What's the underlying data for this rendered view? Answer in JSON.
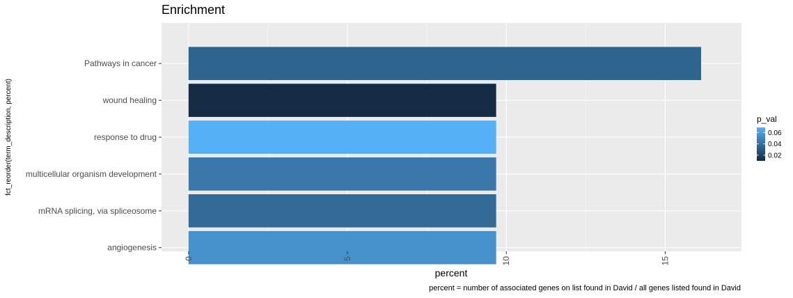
{
  "chart_data": {
    "type": "bar",
    "orientation": "horizontal",
    "title": "Enrichment",
    "xlabel": "percent",
    "ylabel": "fct_reorder(term_description, percent)",
    "caption": "percent = number of associated genes on list found in David / all genes listed found in David",
    "categories": [
      "Pathways in cancer",
      "wound healing",
      "response to drug",
      "multicellular organism development",
      "mRNA splicing, via spliceosome",
      "angiogenesis"
    ],
    "values": [
      16.13,
      9.68,
      9.68,
      9.68,
      9.68,
      9.68
    ],
    "p_val": [
      0.035,
      0.01,
      0.068,
      0.044,
      0.038,
      0.055
    ],
    "xlim": [
      -0.85,
      17.4
    ],
    "xticks": [
      "0",
      "5",
      "10",
      "15"
    ],
    "xtick_values": [
      0,
      5,
      10,
      15
    ],
    "grid": true,
    "legend": {
      "title": "p_val",
      "position": "right",
      "range": [
        0.01,
        0.069
      ],
      "ticks": [
        "0.06",
        "0.04",
        "0.02"
      ],
      "tick_values": [
        0.06,
        0.04,
        0.02
      ],
      "color_low": "#132b43",
      "color_high": "#56b1f7"
    },
    "panel_color": "#ebebeb",
    "grid_color": "#ffffff"
  }
}
